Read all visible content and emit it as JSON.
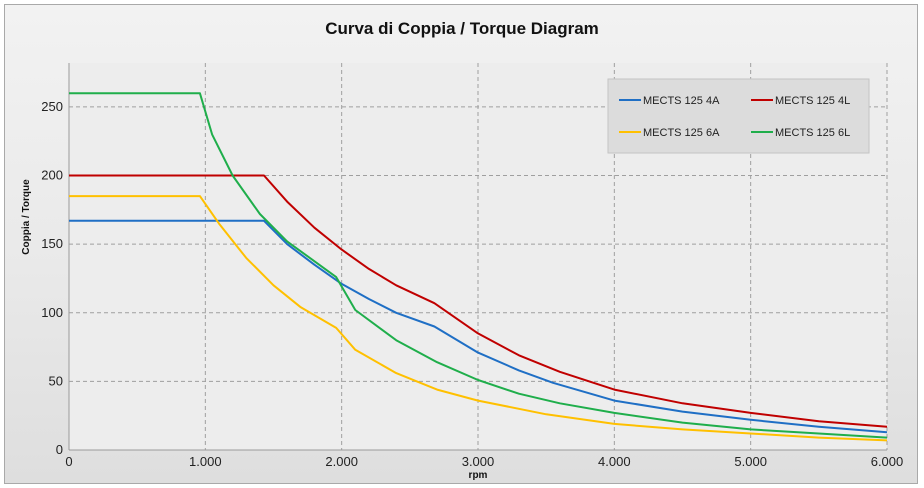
{
  "chart_data": {
    "type": "line",
    "title": "Curva di Coppia / Torque Diagram",
    "xlabel": "rpm",
    "ylabel": "Coppia / Torque",
    "xlim": [
      0,
      6000
    ],
    "ylim": [
      0,
      260
    ],
    "x_ticks": [
      0,
      1000,
      2000,
      3000,
      4000,
      5000,
      6000
    ],
    "x_tick_labels": [
      "0",
      "1.000",
      "2.000",
      "3.000",
      "4.000",
      "5.000",
      "6.000"
    ],
    "y_ticks": [
      0,
      50,
      100,
      150,
      200,
      250
    ],
    "y_tick_labels": [
      "0",
      "50",
      "100",
      "150",
      "200",
      "250"
    ],
    "grid": true,
    "legend_position": "top-right",
    "series": [
      {
        "name": "MECTS 125 4A",
        "color": "#1f6fc5",
        "x": [
          0,
          1430,
          1600,
          1800,
          2000,
          2200,
          2400,
          2680,
          3000,
          3300,
          3550,
          4000,
          4500,
          5000,
          5500,
          6000
        ],
        "y": [
          167,
          167,
          150,
          135,
          121,
          110,
          100,
          90,
          71,
          58,
          49,
          36,
          28,
          22,
          17,
          13
        ]
      },
      {
        "name": "MECTS 125 4L",
        "color": "#c00000",
        "x": [
          0,
          1430,
          1600,
          1800,
          2000,
          2200,
          2400,
          2680,
          3000,
          3300,
          3600,
          4000,
          4500,
          5000,
          5500,
          6000
        ],
        "y": [
          200,
          200,
          181,
          162,
          146,
          132,
          120,
          107,
          85,
          69,
          57,
          44,
          34,
          27,
          21,
          17
        ]
      },
      {
        "name": "MECTS 125 6A",
        "color": "#ffc000",
        "x": [
          0,
          960,
          1100,
          1300,
          1500,
          1700,
          1960,
          2100,
          2400,
          2700,
          3000,
          3500,
          4000,
          4500,
          5000,
          5500,
          6000
        ],
        "y": [
          185,
          185,
          165,
          140,
          120,
          104,
          89,
          73,
          56,
          44,
          36,
          26,
          19,
          15,
          12,
          9,
          7
        ]
      },
      {
        "name": "MECTS 125 6L",
        "color": "#1fae4b",
        "x": [
          0,
          960,
          1050,
          1200,
          1400,
          1600,
          1960,
          2100,
          2400,
          2700,
          3000,
          3300,
          3600,
          4000,
          4500,
          5000,
          5500,
          6000
        ],
        "y": [
          260,
          260,
          230,
          200,
          172,
          152,
          126,
          102,
          80,
          64,
          51,
          41,
          34,
          27,
          20,
          15,
          12,
          9
        ]
      }
    ]
  }
}
